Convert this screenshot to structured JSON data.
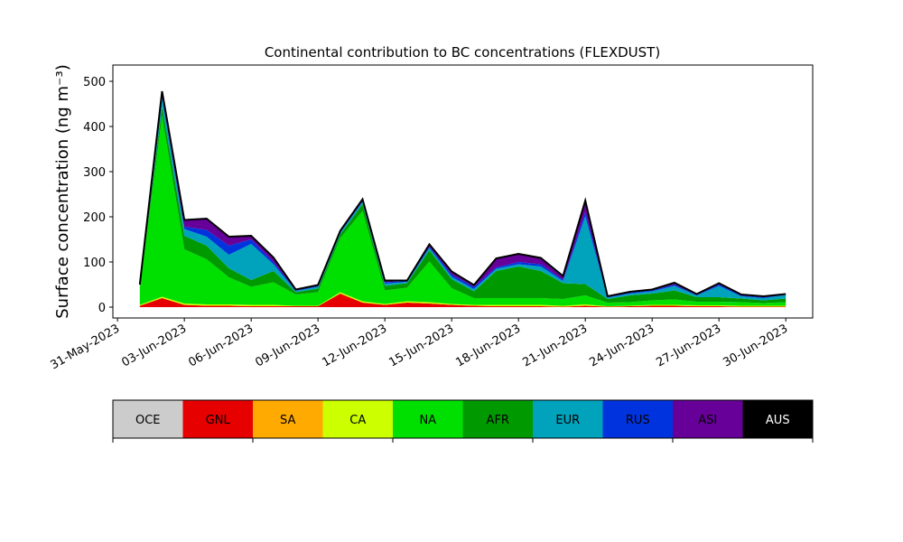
{
  "chart_data": {
    "type": "stacked_area",
    "title": "Continental contribution to BC concentrations (FLEXDUST)",
    "y_label": "Surface concentration (ng m⁻³)",
    "x": [
      "2023-06-01",
      "2023-06-02",
      "2023-06-03",
      "2023-06-04",
      "2023-06-05",
      "2023-06-06",
      "2023-06-07",
      "2023-06-08",
      "2023-06-09",
      "2023-06-10",
      "2023-06-11",
      "2023-06-12",
      "2023-06-13",
      "2023-06-14",
      "2023-06-15",
      "2023-06-16",
      "2023-06-17",
      "2023-06-18",
      "2023-06-19",
      "2023-06-20",
      "2023-06-21",
      "2023-06-22",
      "2023-06-23",
      "2023-06-24",
      "2023-06-25",
      "2023-06-26",
      "2023-06-27",
      "2023-06-28",
      "2023-06-29",
      "2023-06-30"
    ],
    "xlim": [
      "2023-05-30T19:00:00Z",
      "2023-07-01T05:00:00Z"
    ],
    "xticks": [
      {
        "value": "2023-05-31",
        "label": "31-May-2023"
      },
      {
        "value": "2023-06-03",
        "label": "03-Jun-2023"
      },
      {
        "value": "2023-06-06",
        "label": "06-Jun-2023"
      },
      {
        "value": "2023-06-09",
        "label": "09-Jun-2023"
      },
      {
        "value": "2023-06-12",
        "label": "12-Jun-2023"
      },
      {
        "value": "2023-06-15",
        "label": "15-Jun-2023"
      },
      {
        "value": "2023-06-18",
        "label": "18-Jun-2023"
      },
      {
        "value": "2023-06-21",
        "label": "21-Jun-2023"
      },
      {
        "value": "2023-06-24",
        "label": "24-Jun-2023"
      },
      {
        "value": "2023-06-27",
        "label": "27-Jun-2023"
      },
      {
        "value": "2023-06-30",
        "label": "30-Jun-2023"
      }
    ],
    "ylim": [
      -24,
      536
    ],
    "yticks": [
      0,
      100,
      200,
      300,
      400,
      500
    ],
    "series": [
      {
        "name": "OCE",
        "color": "#cccccc",
        "values": [
          0,
          0,
          0,
          0,
          0,
          0,
          0,
          0,
          0,
          0,
          0,
          0,
          0,
          0,
          0,
          0,
          0,
          0,
          0,
          0,
          0,
          0,
          0,
          0,
          0,
          0,
          0,
          0,
          0,
          0
        ]
      },
      {
        "name": "GNL",
        "color": "#e60000",
        "values": [
          3,
          20,
          5,
          3,
          3,
          2,
          2,
          2,
          2,
          30,
          10,
          5,
          10,
          8,
          5,
          3,
          2,
          2,
          2,
          1,
          3,
          1,
          2,
          3,
          3,
          2,
          2,
          1,
          1,
          1
        ]
      },
      {
        "name": "SA",
        "color": "#ffaa00",
        "values": [
          0,
          0,
          0,
          0,
          0,
          0,
          0,
          0,
          0,
          0,
          0,
          0,
          0,
          0,
          0,
          0,
          0,
          0,
          0,
          0,
          0,
          0,
          0,
          0,
          0,
          0,
          0,
          0,
          0,
          0
        ]
      },
      {
        "name": "CA",
        "color": "#ccff00",
        "values": [
          2,
          3,
          3,
          3,
          3,
          3,
          3,
          1,
          1,
          3,
          3,
          2,
          3,
          3,
          2,
          2,
          3,
          3,
          3,
          2,
          3,
          1,
          1,
          2,
          2,
          2,
          2,
          2,
          2,
          2
        ]
      },
      {
        "name": "NA",
        "color": "#00e000",
        "values": [
          35,
          400,
          120,
          100,
          60,
          40,
          50,
          25,
          30,
          120,
          200,
          30,
          30,
          90,
          35,
          15,
          15,
          15,
          15,
          15,
          20,
          8,
          8,
          10,
          12,
          8,
          8,
          8,
          6,
          8
        ]
      },
      {
        "name": "AFR",
        "color": "#009900",
        "values": [
          5,
          20,
          30,
          30,
          20,
          15,
          25,
          5,
          8,
          8,
          15,
          10,
          10,
          25,
          20,
          15,
          60,
          70,
          60,
          35,
          25,
          8,
          15,
          15,
          20,
          10,
          10,
          8,
          6,
          8
        ]
      },
      {
        "name": "EUR",
        "color": "#00a3bb",
        "values": [
          3,
          20,
          15,
          20,
          30,
          80,
          15,
          3,
          4,
          4,
          5,
          5,
          3,
          5,
          5,
          5,
          5,
          5,
          10,
          5,
          150,
          3,
          4,
          5,
          10,
          4,
          25,
          5,
          5,
          8
        ]
      },
      {
        "name": "RUS",
        "color": "#0033dd",
        "values": [
          1,
          5,
          5,
          15,
          20,
          10,
          5,
          1,
          2,
          2,
          2,
          3,
          2,
          3,
          5,
          5,
          3,
          5,
          5,
          3,
          10,
          1,
          2,
          2,
          3,
          1,
          3,
          2,
          2,
          1
        ]
      },
      {
        "name": "ASI",
        "color": "#660099",
        "values": [
          1,
          10,
          15,
          25,
          20,
          8,
          10,
          2,
          2,
          2,
          4,
          4,
          1,
          5,
          7,
          4,
          20,
          18,
          14,
          8,
          25,
          2,
          2,
          2,
          4,
          2,
          3,
          2,
          2,
          1
        ]
      },
      {
        "name": "AUS",
        "color": "#000000",
        "values": [
          0,
          0,
          0,
          0,
          0,
          0,
          0,
          0,
          0,
          0,
          0,
          0,
          0,
          0,
          0,
          0,
          0,
          0,
          0,
          0,
          0,
          0,
          0,
          0,
          0,
          0,
          0,
          0,
          0,
          0
        ]
      }
    ]
  }
}
